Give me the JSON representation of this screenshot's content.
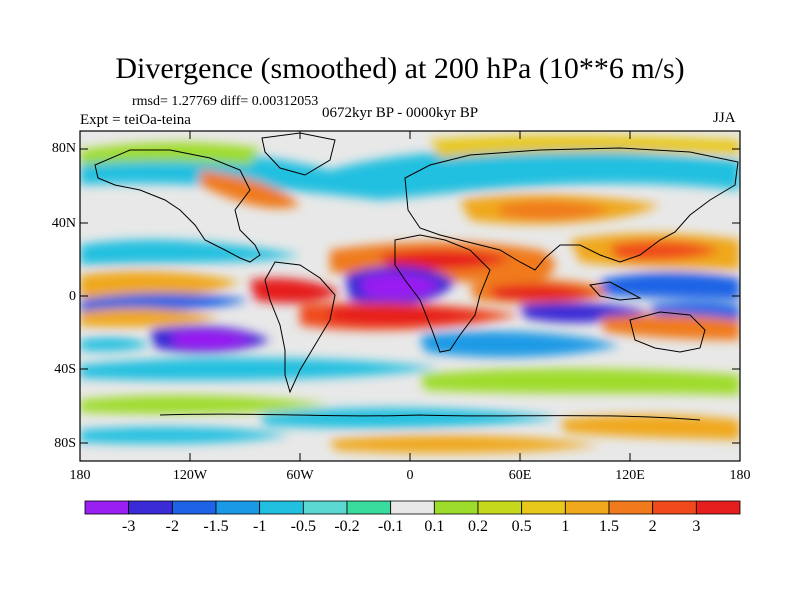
{
  "title": "Divergence (smoothed) at 200 hPa (10**6 m/s)",
  "stats": "rmsd= 1.27769 diff= 0.00312053",
  "experiment": "Expt = teiOa-teina",
  "period": "0672kyr BP - 0000kyr BP",
  "season": "JJA",
  "y_ticks": [
    "80N",
    "40N",
    "0",
    "40S",
    "80S"
  ],
  "x_ticks": [
    "180",
    "120W",
    "60W",
    "0",
    "60E",
    "120E",
    "180"
  ],
  "colorbar": {
    "colors": [
      "#9a1ff2",
      "#3b2bd6",
      "#1e63e6",
      "#1a9ae6",
      "#22c0e0",
      "#5cd8d2",
      "#39dc9c",
      "#e8e8e8",
      "#9edc2c",
      "#c6d81c",
      "#e8c81a",
      "#f0a81c",
      "#f07a1c",
      "#f04a1c",
      "#e61e1e"
    ],
    "labels": [
      "-3",
      "-2",
      "-1.5",
      "-1",
      "-0.5",
      "-0.2",
      "-0.1",
      "0.1",
      "0.2",
      "0.5",
      "1",
      "1.5",
      "2",
      "3"
    ]
  }
}
